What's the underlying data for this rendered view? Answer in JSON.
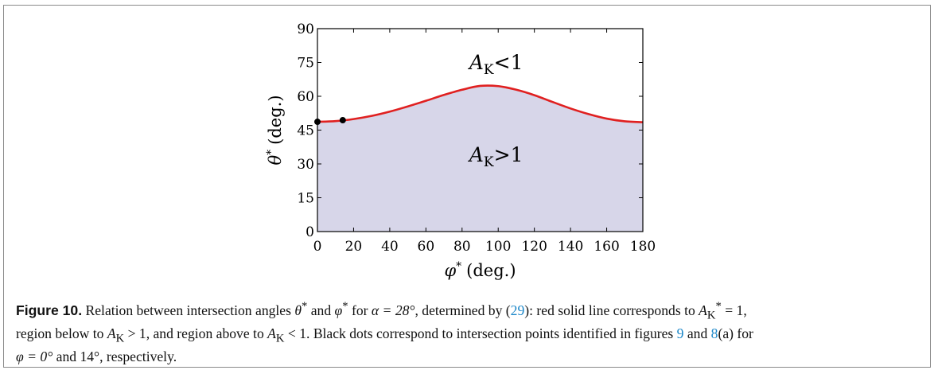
{
  "chart_data": {
    "type": "area",
    "xlabel_sym": "φ",
    "xlabel_sup": "*",
    "xlabel_unit": "(deg.)",
    "ylabel_sym": "θ",
    "ylabel_sup": "*",
    "ylabel_unit": "(deg.)",
    "xlim": [
      0,
      180
    ],
    "ylim": [
      0,
      90
    ],
    "x_ticks": [
      0,
      20,
      40,
      60,
      80,
      100,
      120,
      140,
      160,
      180
    ],
    "y_ticks": [
      0,
      15,
      30,
      45,
      60,
      75,
      90
    ],
    "series": [
      {
        "x": [
          0,
          10,
          20,
          30,
          40,
          50,
          60,
          70,
          80,
          90,
          100,
          110,
          120,
          130,
          140,
          150,
          160,
          170,
          180
        ],
        "y": [
          48.7,
          49.0,
          49.9,
          51.3,
          53.2,
          55.5,
          58.0,
          60.6,
          62.9,
          64.6,
          64.5,
          62.9,
          60.5,
          57.5,
          54.6,
          52.1,
          50.1,
          48.9,
          48.5
        ]
      }
    ],
    "points": [
      {
        "x": 0,
        "y": 48.7
      },
      {
        "x": 14,
        "y": 49.4
      }
    ],
    "region_above": {
      "sym": "A",
      "sub": "K",
      "rel": "<1"
    },
    "region_below": {
      "sym": "A",
      "sub": "K",
      "rel": ">1"
    },
    "colors": {
      "curve": "#e02020",
      "fill": "#d7d6e9",
      "dots": "#000000"
    }
  },
  "caption": {
    "label": "Figure 10.",
    "t1": " Relation between intersection angles ",
    "theta": "θ",
    "star": "*",
    "t2": " and ",
    "phi": "φ",
    "t3": " for ",
    "alpha_eq": "α = 28°",
    "t4": ", determined by (",
    "eq_ref": "29",
    "t5": "): red solid line corresponds to ",
    "A": "A",
    "K": "K",
    "eq1": " = 1,",
    "t6": "region below to ",
    "gt1": " > 1",
    "t7": ", and region above to ",
    "lt1": " < 1",
    "t8": ". Black dots correspond to intersection points identified in figures ",
    "fig9": "9",
    "t9": " and ",
    "fig8": "8",
    "t10": "(a) for",
    "phi_eq": "φ = 0°",
    "t11": " and 14°, respectively."
  }
}
